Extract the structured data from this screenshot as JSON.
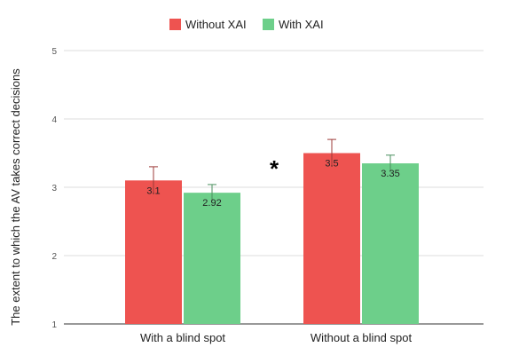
{
  "chart_data": {
    "type": "bar",
    "categories": [
      "With a blind spot",
      "Without a blind spot"
    ],
    "series": [
      {
        "name": "Without XAI",
        "color": "#ee5350",
        "values": [
          3.1,
          3.5
        ],
        "errors": [
          0.2,
          0.2
        ],
        "labels": [
          "3.1",
          "3.5"
        ]
      },
      {
        "name": "With XAI",
        "color": "#6dcf8a",
        "values": [
          2.92,
          3.35
        ],
        "errors": [
          0.12,
          0.12
        ],
        "labels": [
          "2.92",
          "3.35"
        ]
      }
    ],
    "ylabel": "The extent to which the AV takes correct decisions",
    "ylim": [
      1,
      5
    ],
    "yticks": [
      "1",
      "2",
      "3",
      "4",
      "5"
    ],
    "grid": true,
    "legend_position": "top-center",
    "annotation": "*"
  }
}
